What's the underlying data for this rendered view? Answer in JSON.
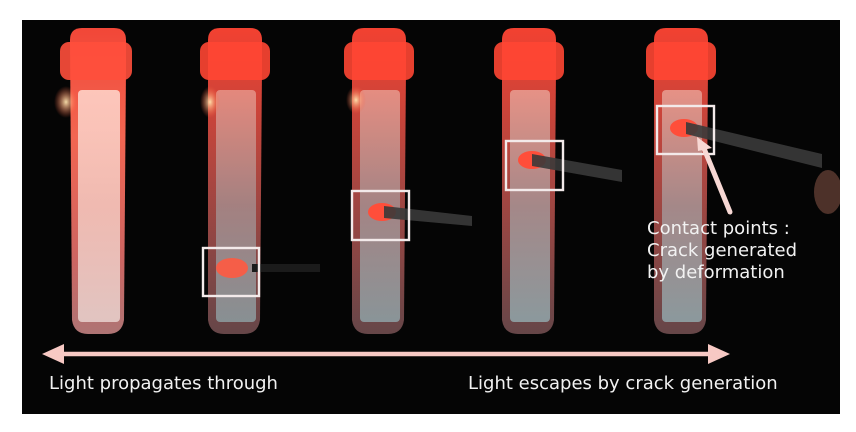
{
  "labels": {
    "left": "Light propagates through",
    "right": "Light escapes by crack generation"
  },
  "callout": {
    "line1": "Contact points :",
    "line2": "Crack generated",
    "line3": "by deformation"
  },
  "colors": {
    "background": "#050505",
    "glow_red": "#ff3b2a",
    "arrow": "#f7c9c4",
    "highlight_box": "#f3eaea",
    "text": "#f2f2f2"
  }
}
